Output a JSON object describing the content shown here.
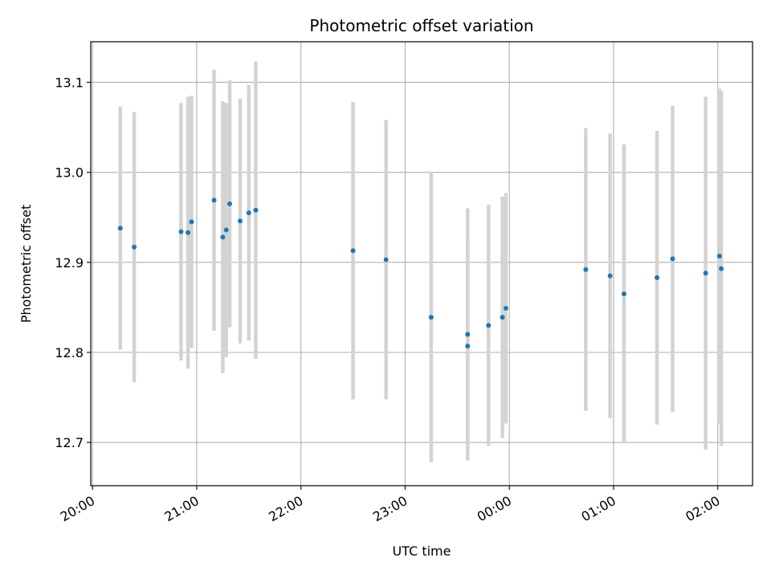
{
  "chart_data": {
    "type": "scatter",
    "title": "Photometric offset variation",
    "xlabel": "UTC time",
    "ylabel": "Photometric offset",
    "xlim": [
      "2023-01-01T19:59",
      "2023-01-02T02:20"
    ],
    "ylim": [
      12.652,
      13.145
    ],
    "x_ticks": [
      {
        "t": "2023-01-01T20:00",
        "label": "20:00"
      },
      {
        "t": "2023-01-01T21:00",
        "label": "21:00"
      },
      {
        "t": "2023-01-01T22:00",
        "label": "22:00"
      },
      {
        "t": "2023-01-01T23:00",
        "label": "23:00"
      },
      {
        "t": "2023-01-02T00:00",
        "label": "00:00"
      },
      {
        "t": "2023-01-02T01:00",
        "label": "01:00"
      },
      {
        "t": "2023-01-02T02:00",
        "label": "02:00"
      }
    ],
    "y_ticks": [
      {
        "v": 12.7,
        "label": "12.7"
      },
      {
        "v": 12.8,
        "label": "12.8"
      },
      {
        "v": 12.9,
        "label": "12.9"
      },
      {
        "v": 13.0,
        "label": "13.0"
      },
      {
        "v": 13.1,
        "label": "13.1"
      }
    ],
    "grid": true,
    "point_color": "#1f77b4",
    "errorbar_color": "#d3d3d3",
    "points": [
      {
        "t": "2023-01-01T20:16",
        "y": 12.938,
        "err": 0.135
      },
      {
        "t": "2023-01-01T20:24",
        "y": 12.917,
        "err": 0.15
      },
      {
        "t": "2023-01-01T20:51",
        "y": 12.934,
        "err": 0.143
      },
      {
        "t": "2023-01-01T20:55",
        "y": 12.933,
        "err": 0.151
      },
      {
        "t": "2023-01-01T20:57",
        "y": 12.945,
        "err": 0.14
      },
      {
        "t": "2023-01-01T21:10",
        "y": 12.969,
        "err": 0.145
      },
      {
        "t": "2023-01-01T21:15",
        "y": 12.928,
        "err": 0.151
      },
      {
        "t": "2023-01-01T21:17",
        "y": 12.936,
        "err": 0.141
      },
      {
        "t": "2023-01-01T21:19",
        "y": 12.965,
        "err": 0.137
      },
      {
        "t": "2023-01-01T21:25",
        "y": 12.946,
        "err": 0.136
      },
      {
        "t": "2023-01-01T21:30",
        "y": 12.955,
        "err": 0.142
      },
      {
        "t": "2023-01-01T21:34",
        "y": 12.958,
        "err": 0.165
      },
      {
        "t": "2023-01-01T22:30",
        "y": 12.913,
        "err": 0.165
      },
      {
        "t": "2023-01-01T22:49",
        "y": 12.903,
        "err": 0.155
      },
      {
        "t": "2023-01-01T23:15",
        "y": 12.839,
        "err": 0.161
      },
      {
        "t": "2023-01-01T23:36",
        "y": 12.82,
        "err": 0.14
      },
      {
        "t": "2023-01-01T23:36",
        "y": 12.807,
        "err": 0.115
      },
      {
        "t": "2023-01-01T23:48",
        "y": 12.83,
        "err": 0.134
      },
      {
        "t": "2023-01-01T23:56",
        "y": 12.839,
        "err": 0.134
      },
      {
        "t": "2023-01-01T23:58",
        "y": 12.849,
        "err": 0.128
      },
      {
        "t": "2023-01-02T00:44",
        "y": 12.892,
        "err": 0.157
      },
      {
        "t": "2023-01-02T00:58",
        "y": 12.885,
        "err": 0.158
      },
      {
        "t": "2023-01-02T01:06",
        "y": 12.865,
        "err": 0.166
      },
      {
        "t": "2023-01-02T01:25",
        "y": 12.883,
        "err": 0.163
      },
      {
        "t": "2023-01-02T01:34",
        "y": 12.904,
        "err": 0.17
      },
      {
        "t": "2023-01-02T01:53",
        "y": 12.888,
        "err": 0.196
      },
      {
        "t": "2023-01-02T02:01",
        "y": 12.907,
        "err": 0.186
      },
      {
        "t": "2023-01-02T02:02",
        "y": 12.893,
        "err": 0.197
      }
    ]
  }
}
